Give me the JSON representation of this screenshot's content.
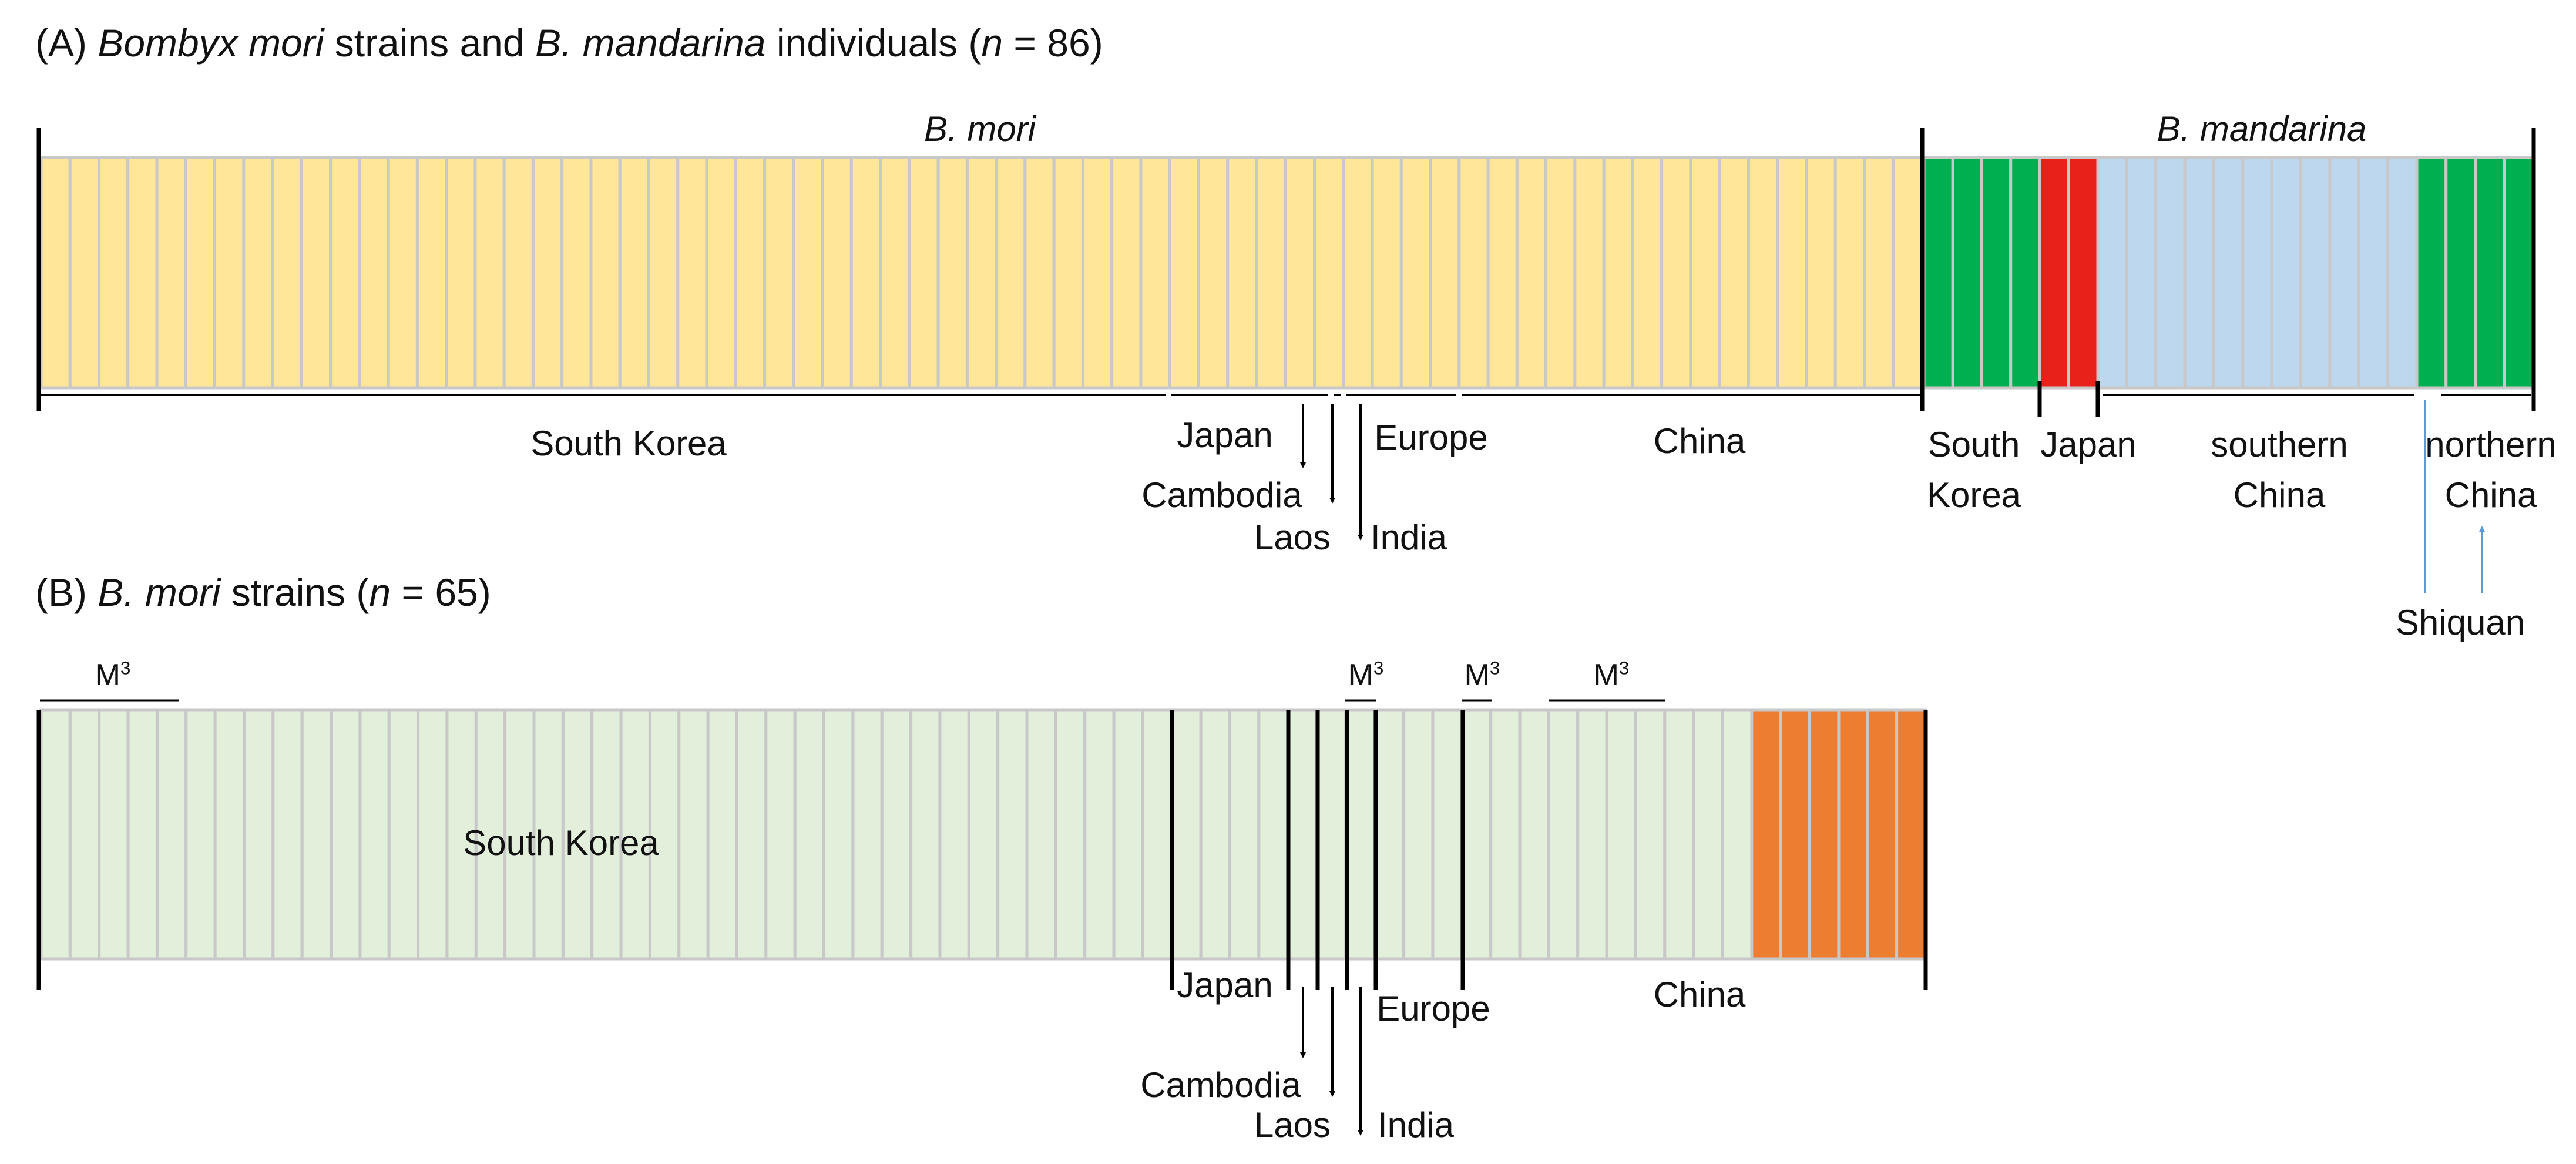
{
  "panel_a": {
    "title_prefix": "(A) ",
    "title_species1": "Bombyx mori",
    "title_mid": " strains and ",
    "title_species2": "B. mandarina",
    "title_mid2": " individuals (",
    "title_n": "n",
    "title_suffix": " = 86)",
    "group_mori": "B. mori",
    "group_mandarina": "B. mandarina",
    "colors": {
      "mori": "#FFE699",
      "south_korea_mand": "#00B050",
      "japan_mand": "#E8221B",
      "southern_china": "#BDD7EE",
      "northern_china": "#00B050",
      "stroke": "#C8C8C8"
    },
    "labels": {
      "south_korea": "South Korea",
      "japan": "Japan",
      "cambodia": "Cambodia",
      "laos": "Laos",
      "europe": "Europe",
      "india": "India",
      "china": "China",
      "mand_sk_1": "South",
      "mand_sk_2": "Korea",
      "mand_japan": "Japan",
      "mand_sc_1": "southern",
      "mand_sc_2": "China",
      "mand_nc_1": "northern",
      "mand_nc_2": "China",
      "shiquan": "Shiquan"
    }
  },
  "panel_b": {
    "title_prefix": "(B) ",
    "title_species": "B. mori",
    "title_mid": " strains (",
    "title_n": "n",
    "title_suffix": " = 65)",
    "m3_base": "M",
    "m3_sup": "3",
    "colors": {
      "main": "#E2EFDA",
      "orange": "#ED7D31",
      "stroke": "#C8C8C8"
    },
    "labels": {
      "south_korea": "South Korea",
      "japan": "Japan",
      "cambodia": "Cambodia",
      "laos": "Laos",
      "europe": "Europe",
      "india": "India",
      "china": "China"
    }
  }
}
